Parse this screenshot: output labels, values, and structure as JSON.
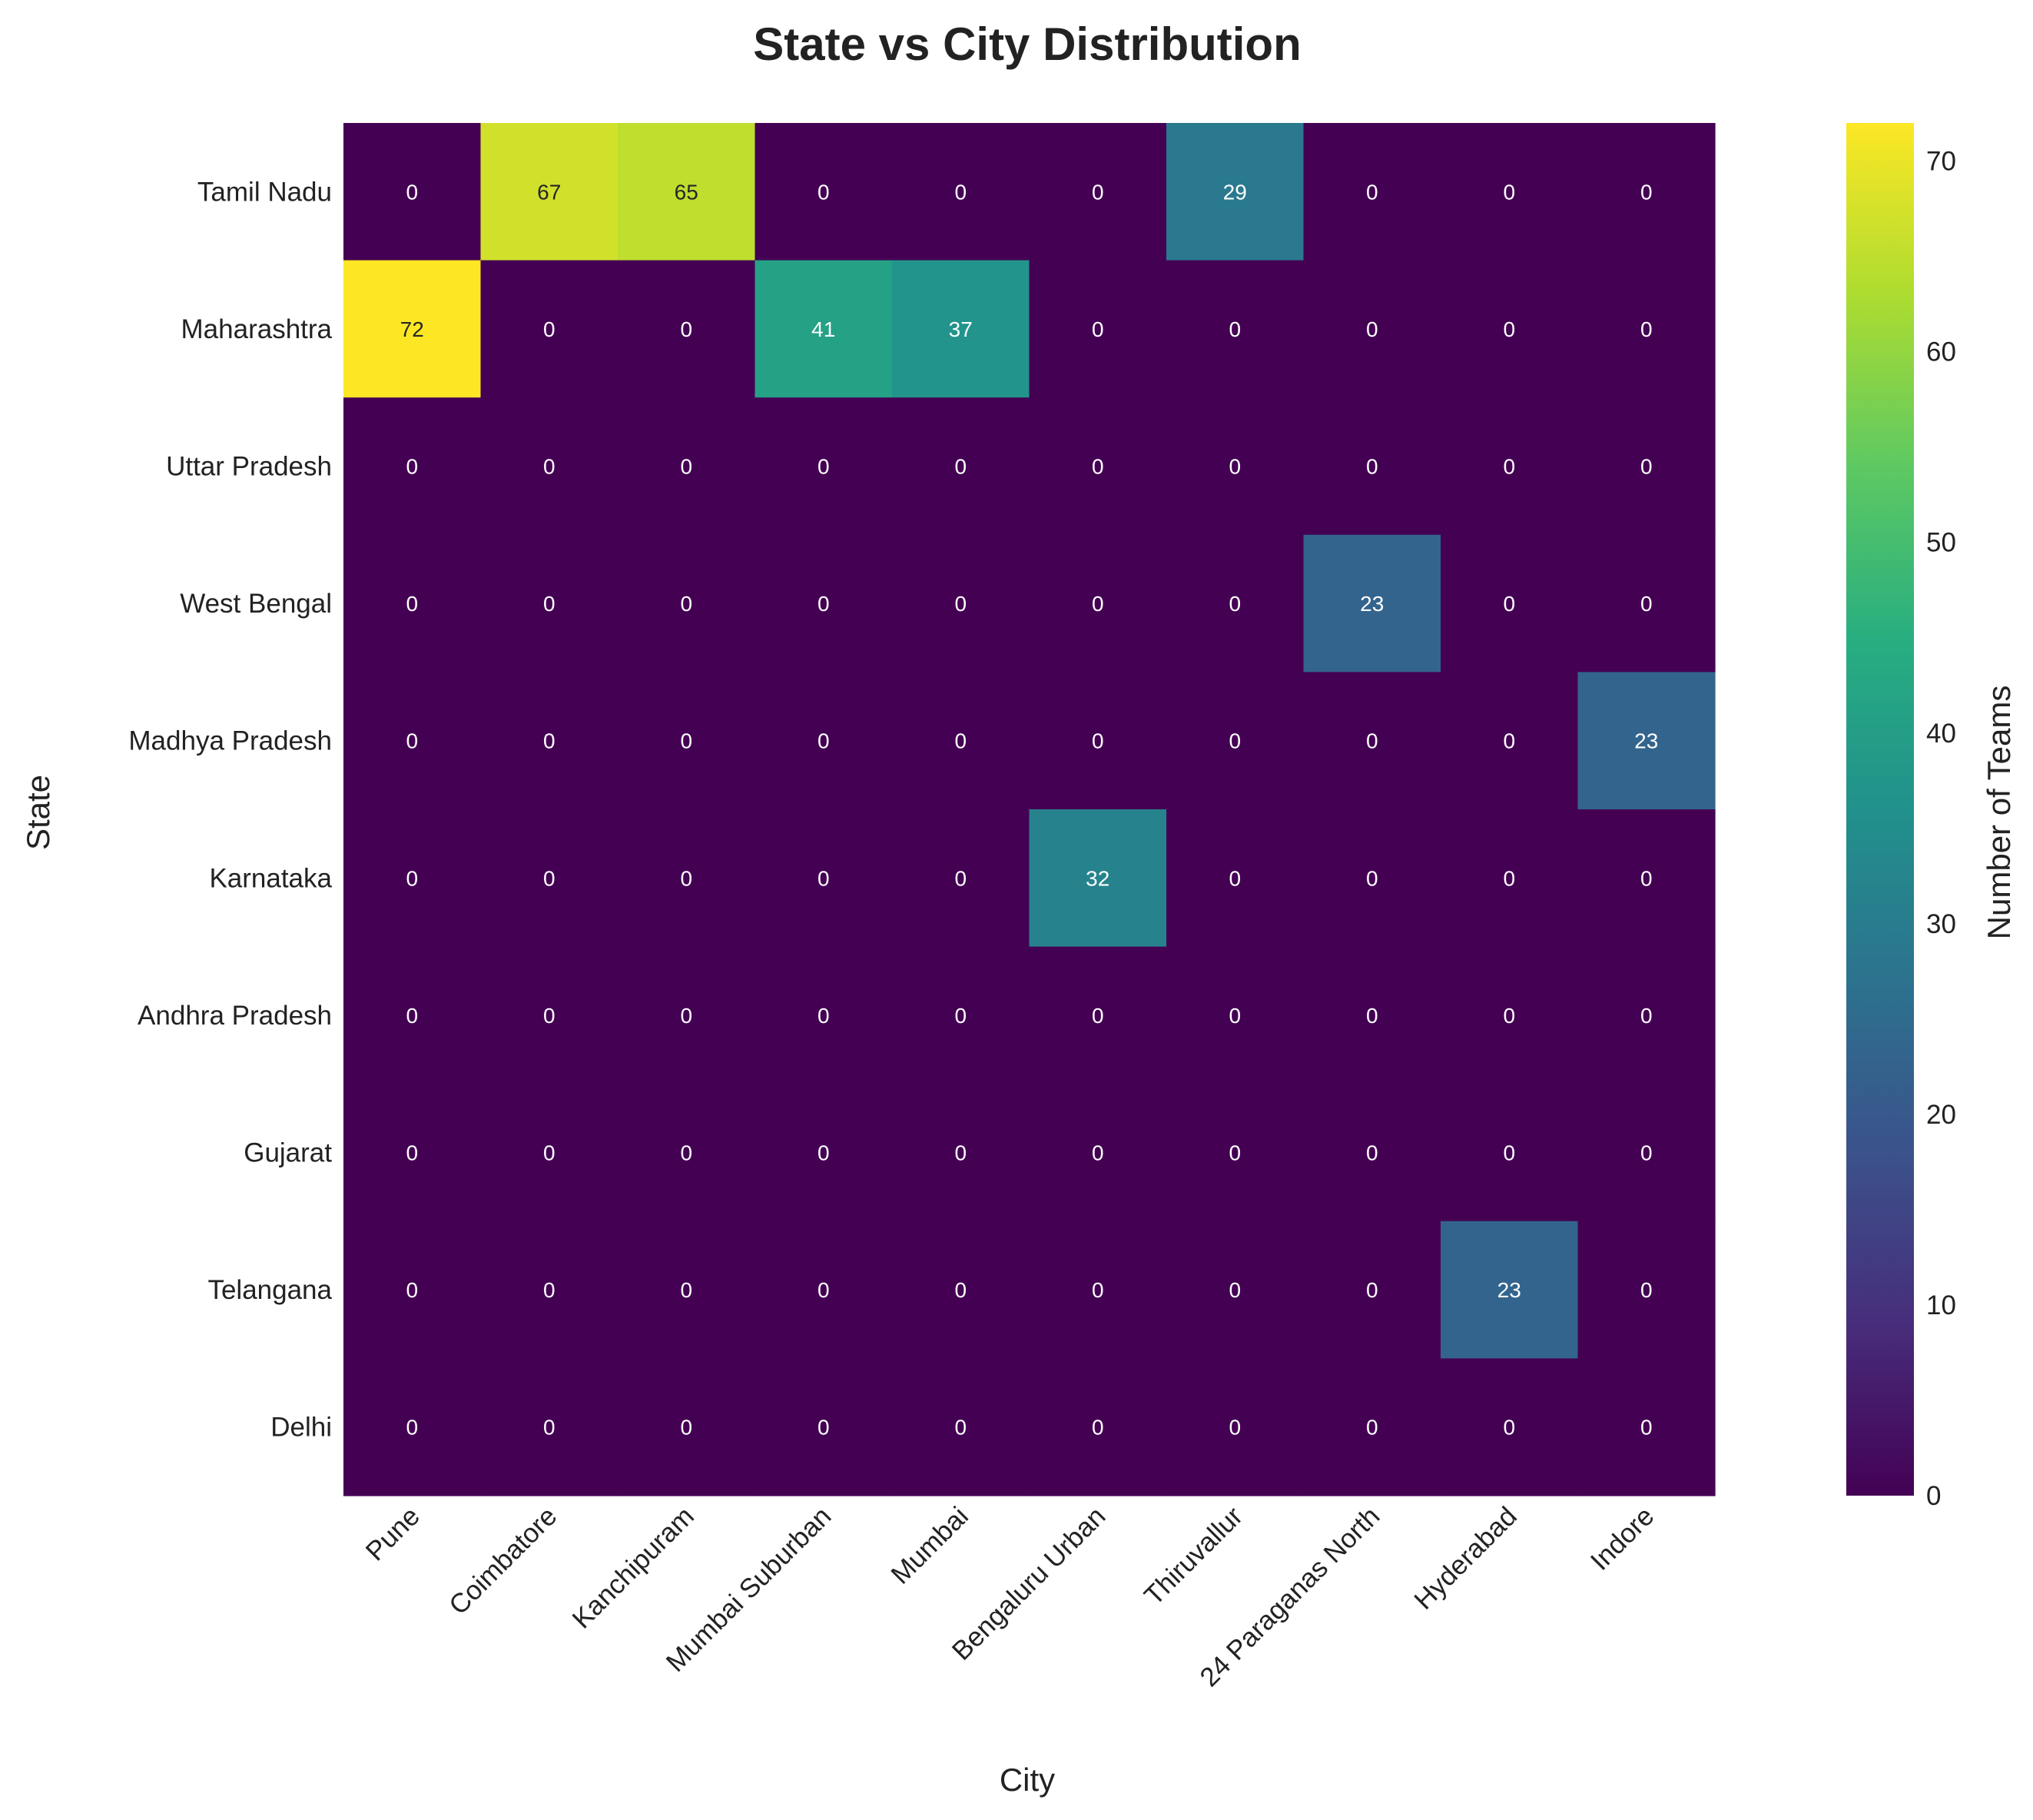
{
  "chart_data": {
    "type": "heatmap",
    "title": "State vs City Distribution",
    "xlabel": "City",
    "ylabel": "State",
    "colorbar_label": "Number of Teams",
    "colormap": "viridis",
    "value_range": [
      0,
      72
    ],
    "colorbar_ticks": [
      "0",
      "10",
      "20",
      "30",
      "40",
      "50",
      "60",
      "70"
    ],
    "x_categories": [
      "Pune",
      "Coimbatore",
      "Kanchipuram",
      "Mumbai Suburban",
      "Mumbai",
      "Bengaluru Urban",
      "Thiruvallur",
      "24 Paraganas North",
      "Hyderabad",
      "Indore"
    ],
    "y_categories": [
      "Tamil Nadu",
      "Maharashtra",
      "Uttar Pradesh",
      "West Bengal",
      "Madhya Pradesh",
      "Karnataka",
      "Andhra Pradesh",
      "Gujarat",
      "Telangana",
      "Delhi"
    ],
    "values": [
      [
        0,
        67,
        65,
        0,
        0,
        0,
        29,
        0,
        0,
        0
      ],
      [
        72,
        0,
        0,
        41,
        37,
        0,
        0,
        0,
        0,
        0
      ],
      [
        0,
        0,
        0,
        0,
        0,
        0,
        0,
        0,
        0,
        0
      ],
      [
        0,
        0,
        0,
        0,
        0,
        0,
        0,
        23,
        0,
        0
      ],
      [
        0,
        0,
        0,
        0,
        0,
        0,
        0,
        0,
        0,
        23
      ],
      [
        0,
        0,
        0,
        0,
        0,
        32,
        0,
        0,
        0,
        0
      ],
      [
        0,
        0,
        0,
        0,
        0,
        0,
        0,
        0,
        0,
        0
      ],
      [
        0,
        0,
        0,
        0,
        0,
        0,
        0,
        0,
        0,
        0
      ],
      [
        0,
        0,
        0,
        0,
        0,
        0,
        0,
        0,
        23,
        0
      ],
      [
        0,
        0,
        0,
        0,
        0,
        0,
        0,
        0,
        0,
        0
      ]
    ],
    "annotated": true,
    "grid": false
  }
}
